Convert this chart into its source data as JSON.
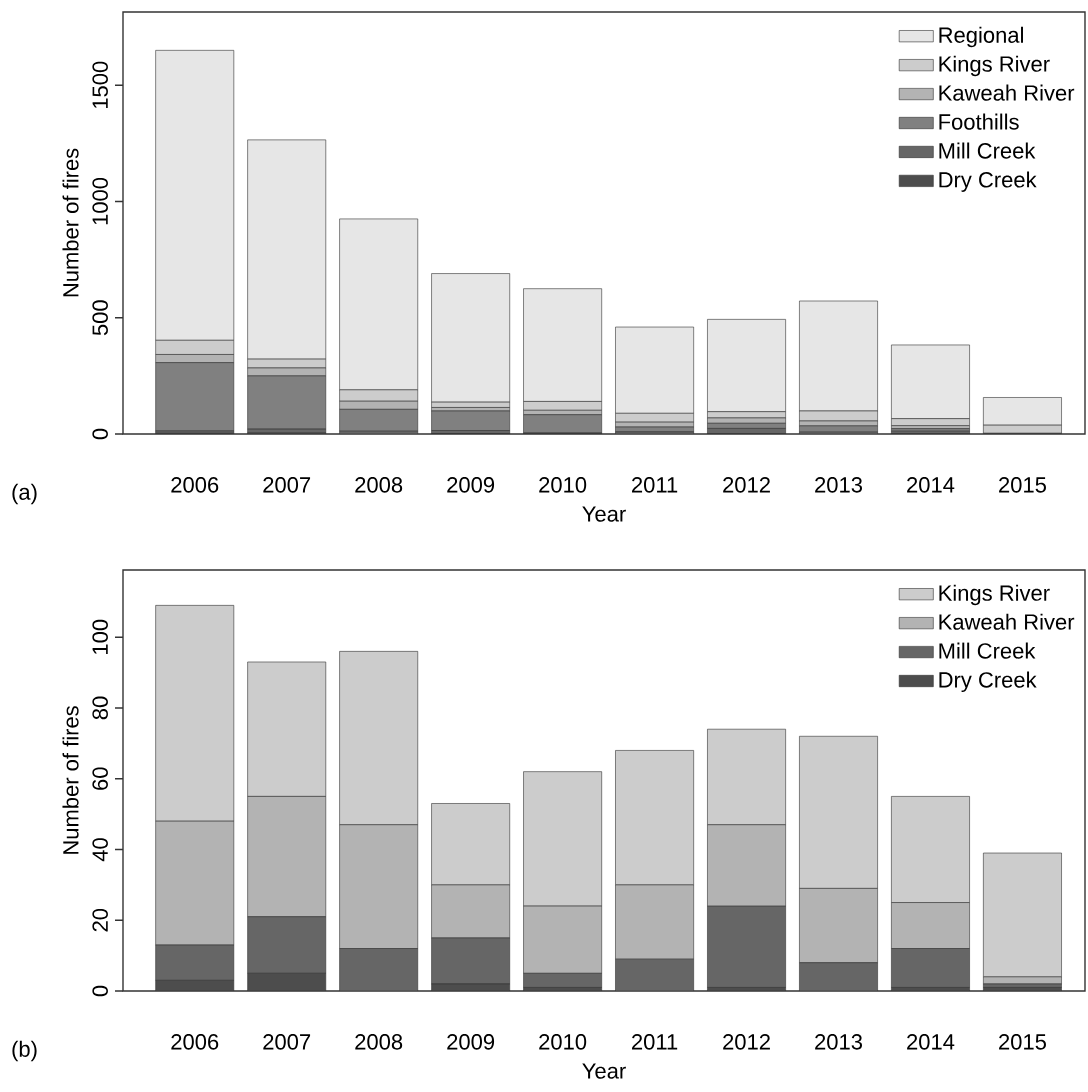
{
  "chart_data": [
    {
      "type": "bar",
      "stacked": true,
      "xlabel": "Year",
      "ylabel": "Number of fires",
      "legend": "top right",
      "annotations": [
        "(a)"
      ],
      "categories": [
        "2006",
        "2007",
        "2008",
        "2009",
        "2010",
        "2011",
        "2012",
        "2013",
        "2014",
        "2015"
      ],
      "ylim": [
        0,
        1815
      ],
      "yticks": [
        0,
        500,
        1000,
        1500
      ],
      "series": [
        {
          "name": "Dry Creek",
          "color": "#4d4d4d",
          "values": [
            3,
            5,
            0,
            2,
            1,
            0,
            1,
            0,
            1,
            null
          ]
        },
        {
          "name": "Mill Creek",
          "color": "#666666",
          "values": [
            10,
            16,
            12,
            13,
            4,
            9,
            23,
            8,
            11,
            1
          ]
        },
        {
          "name": "Foothills",
          "color": "#808080",
          "values": [
            294,
            229,
            94,
            84,
            78,
            21,
            22,
            27,
            11,
            0
          ]
        },
        {
          "name": "Kaweah River",
          "color": "#b3b3b3",
          "values": [
            35,
            34,
            35,
            15,
            19,
            21,
            23,
            21,
            13,
            2
          ]
        },
        {
          "name": "Kings River",
          "color": "#cccccc",
          "values": [
            61,
            38,
            49,
            23,
            38,
            38,
            27,
            43,
            30,
            35
          ]
        },
        {
          "name": "Regional",
          "color": "#e6e6e6",
          "values": [
            1247,
            943,
            735,
            553,
            485,
            371,
            397,
            473,
            317,
            119
          ]
        }
      ]
    },
    {
      "type": "bar",
      "stacked": true,
      "xlabel": "Year",
      "ylabel": "Number of fires",
      "legend": "top right",
      "annotations": [
        "(b)"
      ],
      "categories": [
        "2006",
        "2007",
        "2008",
        "2009",
        "2010",
        "2011",
        "2012",
        "2013",
        "2014",
        "2015"
      ],
      "ylim": [
        0,
        119
      ],
      "yticks": [
        0,
        20,
        40,
        60,
        80,
        100
      ],
      "series": [
        {
          "name": "Dry Creek",
          "color": "#4d4d4d",
          "values": [
            3,
            5,
            0,
            2,
            1,
            0,
            1,
            0,
            1,
            1
          ]
        },
        {
          "name": "Mill Creek",
          "color": "#666666",
          "values": [
            10,
            16,
            12,
            13,
            4,
            9,
            23,
            8,
            11,
            1
          ]
        },
        {
          "name": "Kaweah River",
          "color": "#b3b3b3",
          "values": [
            35,
            34,
            35,
            15,
            19,
            21,
            23,
            21,
            13,
            2
          ]
        },
        {
          "name": "Kings River",
          "color": "#cccccc",
          "values": [
            61,
            38,
            49,
            23,
            38,
            38,
            27,
            43,
            30,
            35
          ]
        }
      ]
    }
  ]
}
